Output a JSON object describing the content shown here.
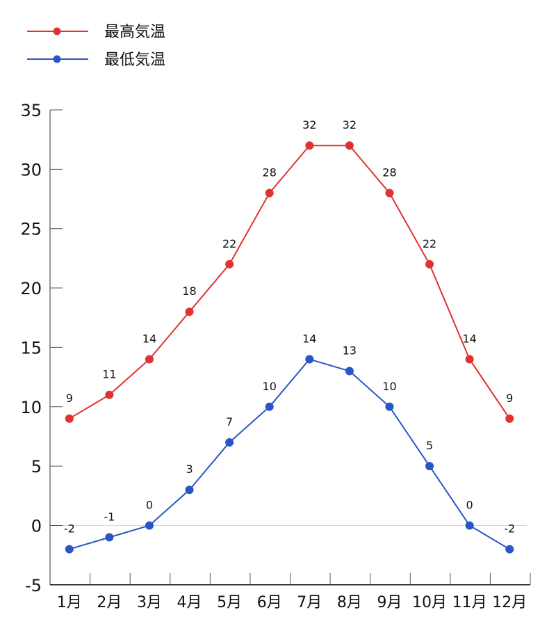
{
  "chart_data": {
    "type": "line",
    "title": "",
    "xlabel": "",
    "ylabel": "",
    "categories": [
      "1月",
      "2月",
      "3月",
      "4月",
      "5月",
      "6月",
      "7月",
      "8月",
      "9月",
      "10月",
      "11月",
      "12月"
    ],
    "series": [
      {
        "name": "最高気温",
        "color": "#e03232",
        "values": [
          9,
          11,
          14,
          18,
          22,
          28,
          32,
          32,
          28,
          22,
          14,
          9
        ]
      },
      {
        "name": "最低気温",
        "color": "#2a55c4",
        "values": [
          -2,
          -1,
          0,
          3,
          7,
          10,
          14,
          13,
          10,
          5,
          0,
          -2
        ]
      }
    ],
    "ylim": [
      -5,
      35
    ],
    "yticks": [
      35,
      30,
      25,
      20,
      15,
      10,
      5,
      0,
      -5
    ],
    "grid": false,
    "zero_line": true,
    "data_labels": true,
    "legend_position": "top-left"
  },
  "legend": {
    "items": [
      {
        "label": "最高気温",
        "color": "#e03232"
      },
      {
        "label": "最低気温",
        "color": "#2a55c4"
      }
    ]
  }
}
